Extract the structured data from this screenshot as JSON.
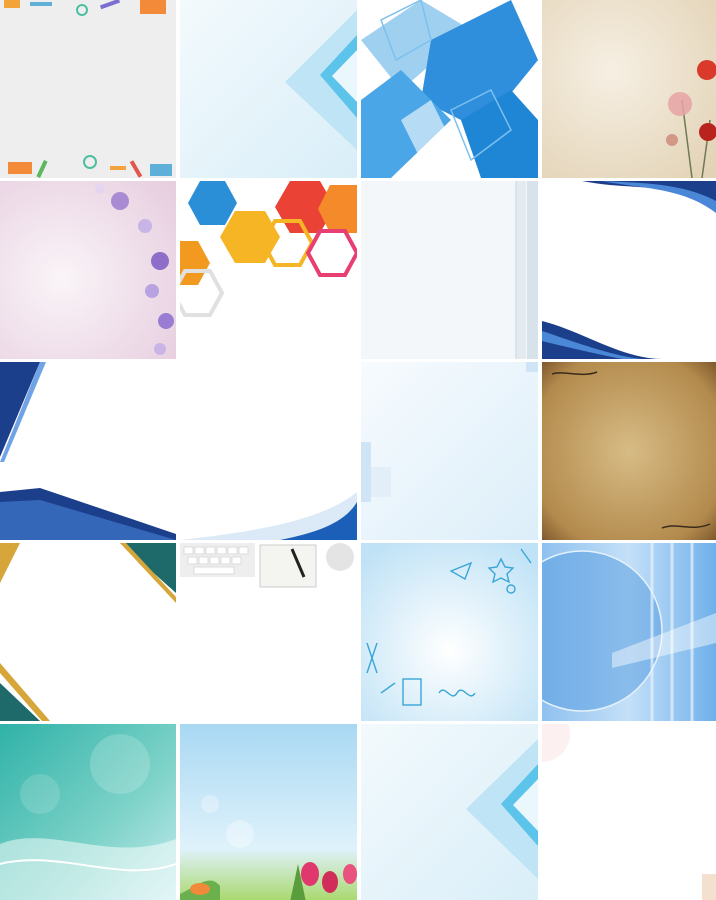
{
  "gallery": {
    "tiles": [
      {
        "name": "stationery-border-background"
      },
      {
        "name": "light-blue-corner-frame-background"
      },
      {
        "name": "blue-geometric-squares-background"
      },
      {
        "name": "vintage-paper-poppy-background"
      },
      {
        "name": "lilac-floral-border-background"
      },
      {
        "name": "colorful-hexagon-background"
      },
      {
        "name": "pale-blue-panel-background"
      },
      {
        "name": "blue-wave-frame-background"
      },
      {
        "name": "navy-diagonal-stripe-background"
      },
      {
        "name": "white-blue-curve-background"
      },
      {
        "name": "soft-blue-gradient-background"
      },
      {
        "name": "old-parchment-background"
      },
      {
        "name": "gold-teal-diamond-frame-background"
      },
      {
        "name": "keyboard-notebook-desk-background"
      },
      {
        "name": "school-doodle-watercolor-background"
      },
      {
        "name": "blue-digital-globe-background"
      },
      {
        "name": "teal-bokeh-wave-background"
      },
      {
        "name": "spring-tulip-bokeh-background"
      },
      {
        "name": "light-blue-corner-frame-background-2"
      },
      {
        "name": "plain-white-background"
      }
    ]
  },
  "colors": {
    "gap": "#ffffff",
    "accent_blue": "#1f86d6",
    "navy": "#1c3f8c"
  }
}
